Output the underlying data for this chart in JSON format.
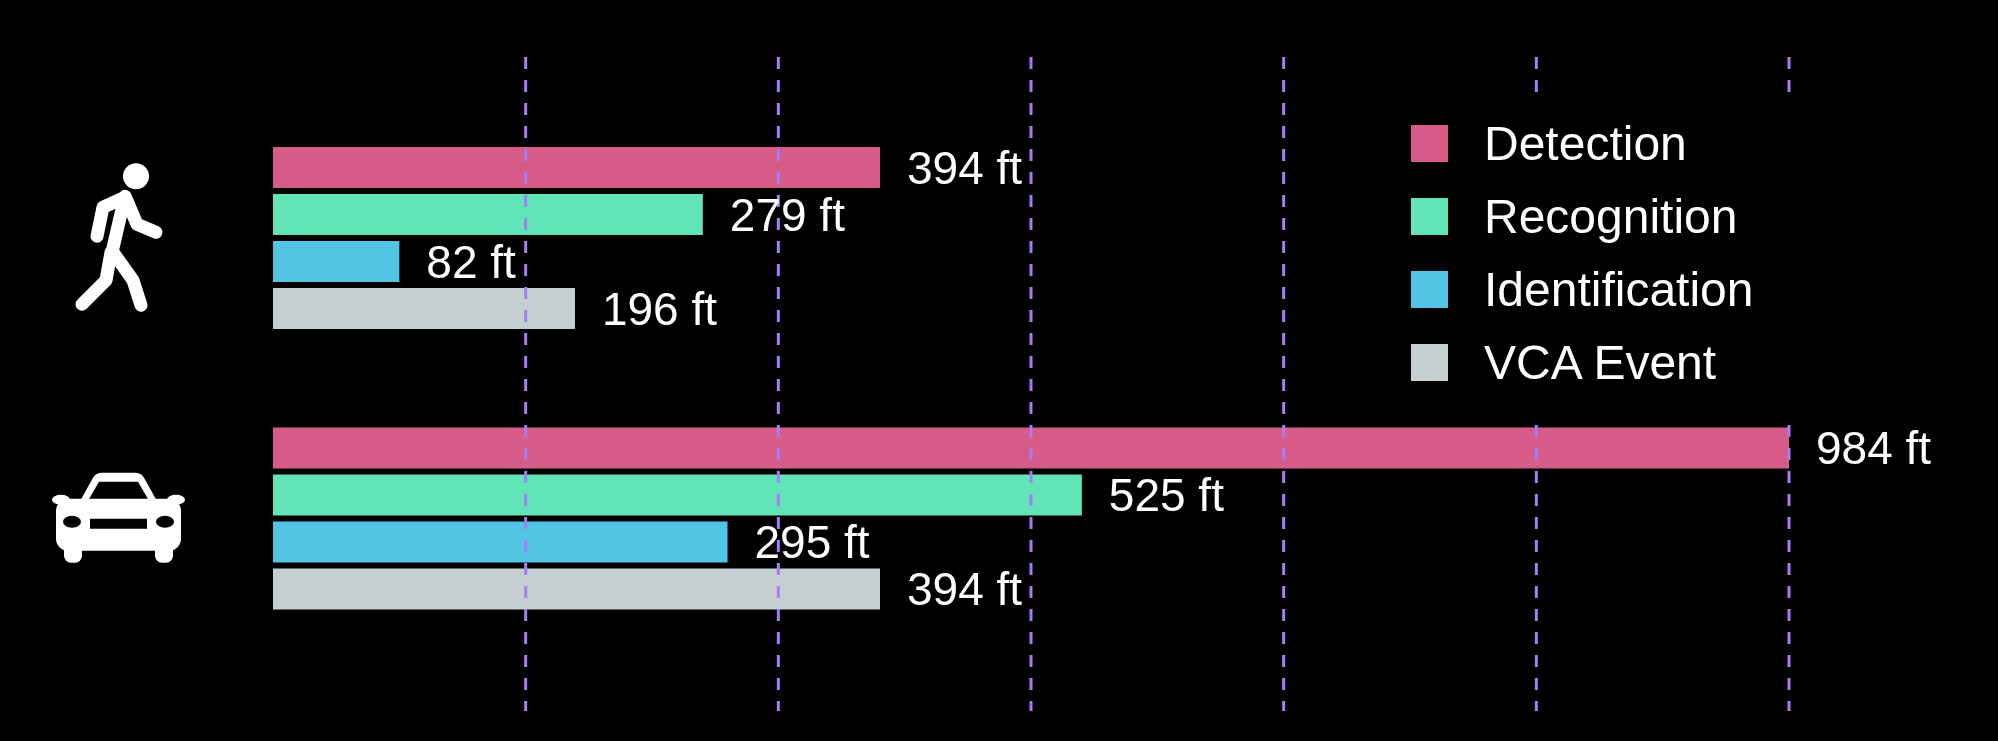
{
  "chart_data": {
    "type": "bar",
    "orientation": "horizontal",
    "categories": [
      null,
      null
    ],
    "series": [
      {
        "name": "Detection",
        "color": "#d65b88",
        "values": [
          394,
          984
        ],
        "value_labels": [
          "394 ft",
          "984 ft"
        ]
      },
      {
        "name": "Recognition",
        "color": "#61e4b7",
        "values": [
          279,
          525
        ],
        "value_labels": [
          "279 ft",
          "525 ft"
        ]
      },
      {
        "name": "Identification",
        "color": "#51c5e3",
        "values": [
          82,
          295
        ],
        "value_labels": [
          "82 ft",
          "295 ft"
        ]
      },
      {
        "name": "VCA Event",
        "color": "#c4d0cf",
        "values": [
          196,
          394
        ],
        "value_labels": [
          "196 ft",
          "394 ft"
        ]
      }
    ],
    "xlim": [
      0,
      984
    ],
    "xticks": [
      {
        "value": 164,
        "label": null
      },
      {
        "value": 328,
        "label": null
      },
      {
        "value": 492,
        "label": null
      },
      {
        "value": 656,
        "label": null
      },
      {
        "value": 820,
        "label": null
      },
      {
        "value": 984,
        "label": null
      }
    ],
    "grid": "x",
    "legend": "top right",
    "tick_labels": false
  }
}
